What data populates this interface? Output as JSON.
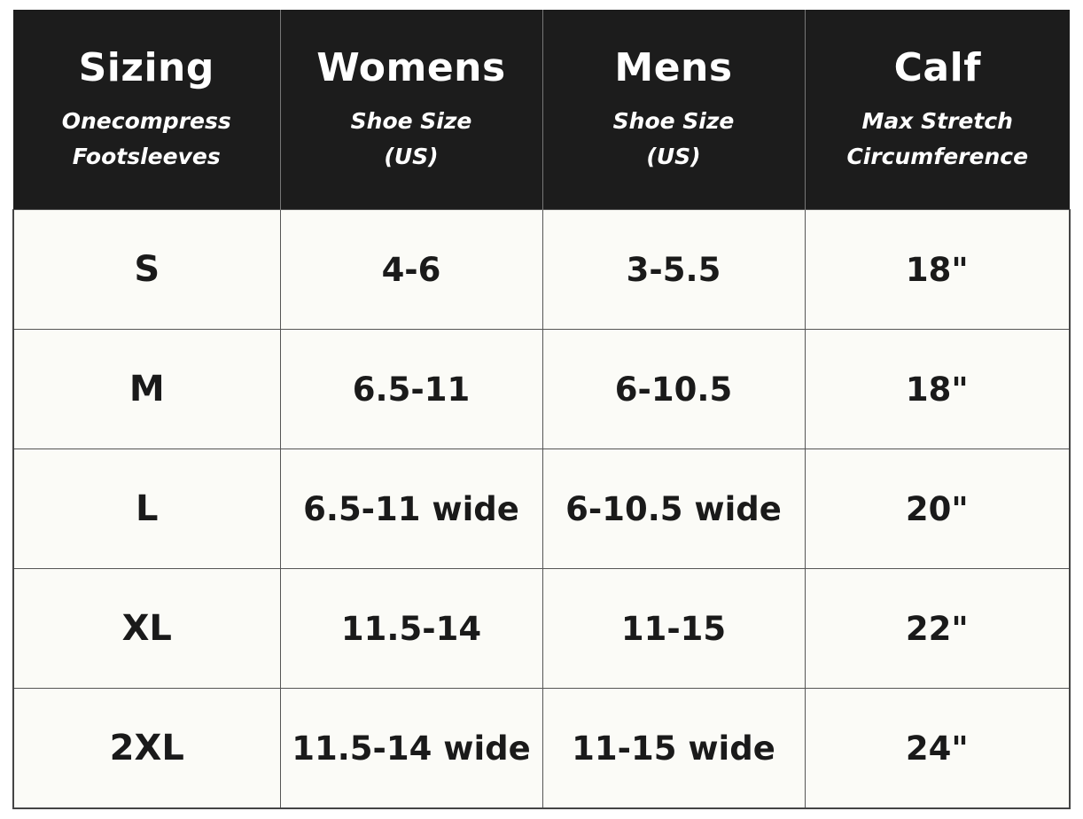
{
  "columns": [
    {
      "title": "Sizing",
      "sub1": "Onecompress",
      "sub2": "Footsleeves"
    },
    {
      "title": "Womens",
      "sub1": "Shoe Size",
      "sub2": "(US)"
    },
    {
      "title": "Mens",
      "sub1": "Shoe Size",
      "sub2": "(US)"
    },
    {
      "title": "Calf",
      "sub1": "Max Stretch",
      "sub2": "Circumference"
    }
  ],
  "rows": [
    {
      "size": "S",
      "womens": "4-6",
      "mens": "3-5.5",
      "calf": "18\""
    },
    {
      "size": "M",
      "womens": "6.5-11",
      "mens": "6-10.5",
      "calf": "18\""
    },
    {
      "size": "L",
      "womens": "6.5-11 wide",
      "mens": "6-10.5 wide",
      "calf": "20\""
    },
    {
      "size": "XL",
      "womens": "11.5-14",
      "mens": "11-15",
      "calf": "22\""
    },
    {
      "size": "2XL",
      "womens": "11.5-14 wide",
      "mens": "11-15 wide",
      "calf": "24\""
    }
  ]
}
